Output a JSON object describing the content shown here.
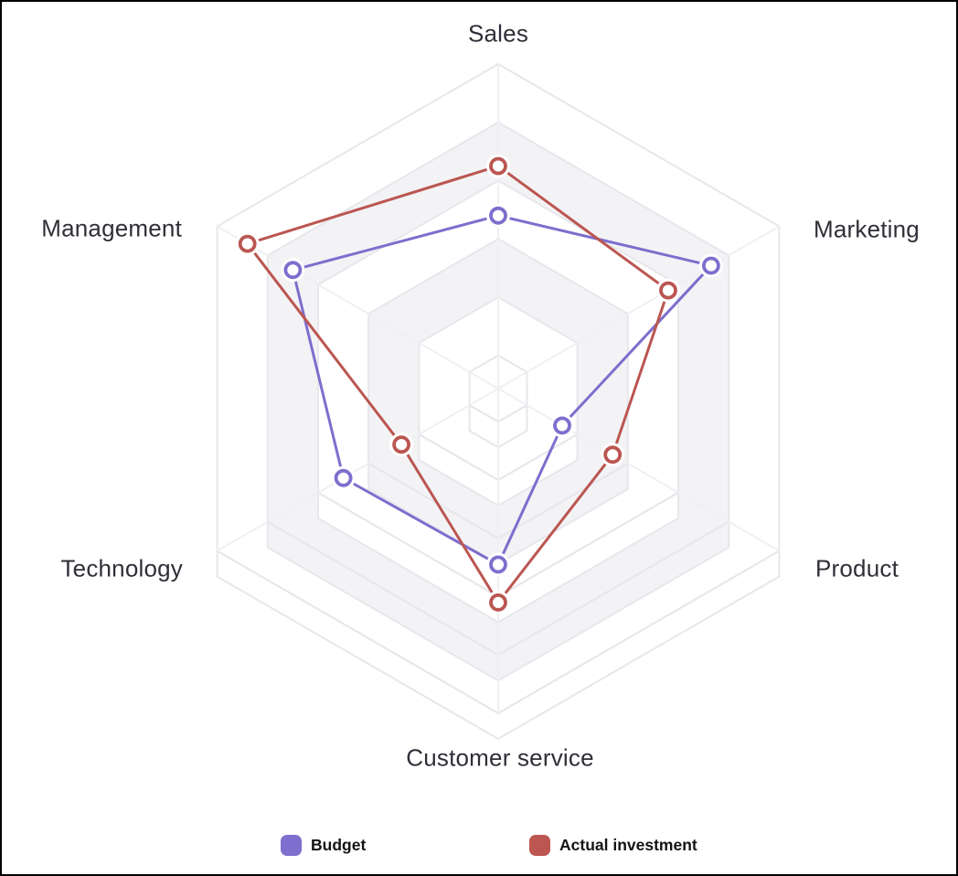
{
  "chart_data": {
    "type": "radar",
    "title": "",
    "categories": [
      "Sales",
      "Marketing",
      "Product",
      "Customer service",
      "Technology",
      "Management"
    ],
    "series": [
      {
        "name": "Budget",
        "color": "#7E6ECD",
        "values": [
          48,
          73,
          14,
          49,
          50,
          70
        ]
      },
      {
        "name": "Actual investment",
        "color": "#BB5651",
        "values": [
          65,
          56,
          34,
          62,
          27,
          88
        ]
      }
    ],
    "value_range": [
      0,
      100
    ],
    "grid_rings": 5,
    "grid_style": "hexagonal-3d-stepped-bands",
    "grid_band_color": "#f3f3f6",
    "grid_line_color": "#e7e7ec",
    "spoke_color": "#f0f0f3",
    "axis_tick_labels_visible": false,
    "legend_position": "bottom"
  }
}
